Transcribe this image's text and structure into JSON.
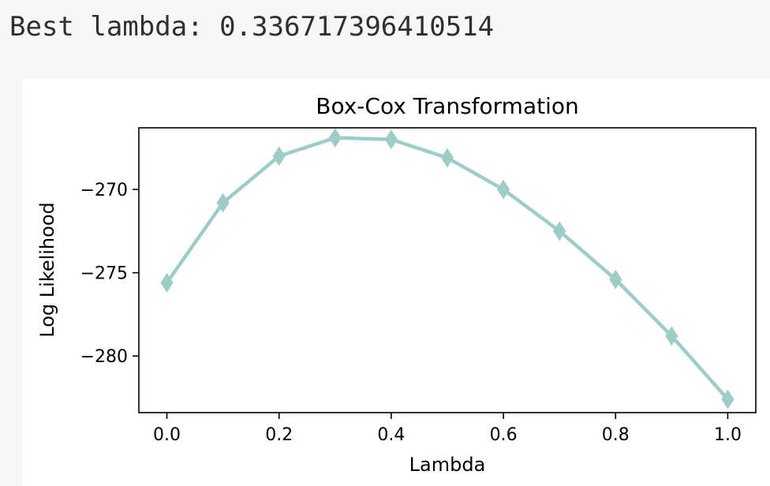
{
  "output": {
    "text": "Best lambda: 0.336717396410514"
  },
  "colors": {
    "series": "#9ecdc8",
    "page_background": "#f7f7f7",
    "figure_background": "#ffffff",
    "axis": "#000000",
    "text": "#000000"
  },
  "chart_data": {
    "type": "line",
    "title": "Box-Cox Transformation",
    "xlabel": "Lambda",
    "ylabel": "Log Likelihood",
    "marker": "diamond",
    "grid": false,
    "xlim": [
      -0.05,
      1.05
    ],
    "ylim": [
      -283.4,
      -266.3
    ],
    "xticks": [
      0.0,
      0.2,
      0.4,
      0.6,
      0.8,
      1.0
    ],
    "xtick_labels": [
      "0.0",
      "0.2",
      "0.4",
      "0.6",
      "0.8",
      "1.0"
    ],
    "yticks": [
      -270,
      -275,
      -280
    ],
    "ytick_labels": [
      "−270",
      "−275",
      "−280"
    ],
    "series": [
      {
        "x": [
          0.0,
          0.1,
          0.2,
          0.3,
          0.4,
          0.5,
          0.6,
          0.7,
          0.8,
          0.9,
          1.0
        ],
        "values": [
          -275.6,
          -270.8,
          -268.0,
          -266.9,
          -267.0,
          -268.1,
          -270.0,
          -272.5,
          -275.4,
          -278.8,
          -282.6
        ]
      }
    ]
  }
}
